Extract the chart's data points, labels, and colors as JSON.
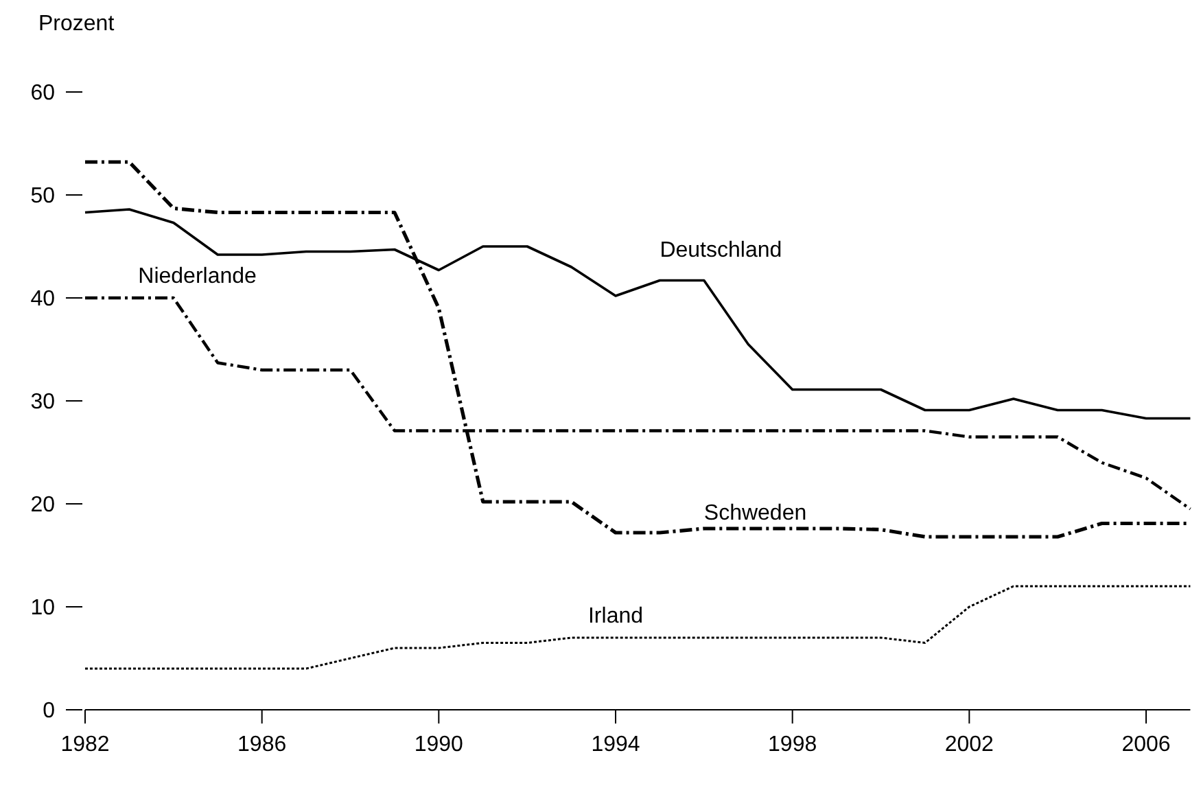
{
  "chart_data": {
    "type": "line",
    "ylabel": "Prozent",
    "x": [
      1982,
      1983,
      1984,
      1985,
      1986,
      1987,
      1988,
      1989,
      1990,
      1991,
      1992,
      1993,
      1994,
      1995,
      1996,
      1997,
      1998,
      1999,
      2000,
      2001,
      2002,
      2003,
      2004,
      2005,
      2006,
      2007
    ],
    "xlim": [
      1982,
      2007
    ],
    "xticks": [
      1982,
      1986,
      1990,
      1994,
      1998,
      2002,
      2006
    ],
    "ylim": [
      0,
      60
    ],
    "yticks": [
      0,
      10,
      20,
      30,
      40,
      50,
      60
    ],
    "grid": false,
    "series": [
      {
        "name": "Deutschland",
        "color": "#000000",
        "line_style": "solid",
        "values": [
          48.3,
          48.6,
          47.3,
          44.2,
          44.2,
          44.5,
          44.5,
          44.7,
          42.7,
          45,
          45,
          43,
          40.2,
          41.7,
          41.7,
          35.5,
          31.1,
          31.1,
          31.1,
          29.1,
          29.1,
          30.2,
          29.1,
          29.1,
          28.3,
          28.3
        ]
      },
      {
        "name": "Schweden",
        "color": "#000000",
        "line_style": "dashed",
        "values": [
          53.2,
          53.2,
          48.7,
          48.3,
          48.3,
          48.3,
          48.3,
          48.3,
          39,
          20.2,
          20.2,
          20.2,
          17.2,
          17.2,
          17.6,
          17.6,
          17.6,
          17.6,
          17.5,
          16.8,
          16.8,
          16.8,
          16.8,
          18.1,
          18.1,
          18.1
        ]
      },
      {
        "name": "Niederlande",
        "color": "#000000",
        "line_style": "dashed",
        "values": [
          40,
          40,
          40,
          33.7,
          33,
          33,
          33,
          27.1,
          27.1,
          27.1,
          27.1,
          27.1,
          27.1,
          27.1,
          27.1,
          27.1,
          27.1,
          27.1,
          27.1,
          27.1,
          26.5,
          26.5,
          26.5,
          24,
          22.5,
          19.5
        ]
      },
      {
        "name": "Irland",
        "color": "#000000",
        "line_style": "dotted",
        "values": [
          4,
          4,
          4,
          4,
          4,
          4,
          5,
          6,
          6,
          6.5,
          6.5,
          7,
          7,
          7,
          7,
          7,
          7,
          7,
          7,
          6.5,
          10,
          12,
          12,
          12,
          12,
          12
        ]
      }
    ]
  }
}
